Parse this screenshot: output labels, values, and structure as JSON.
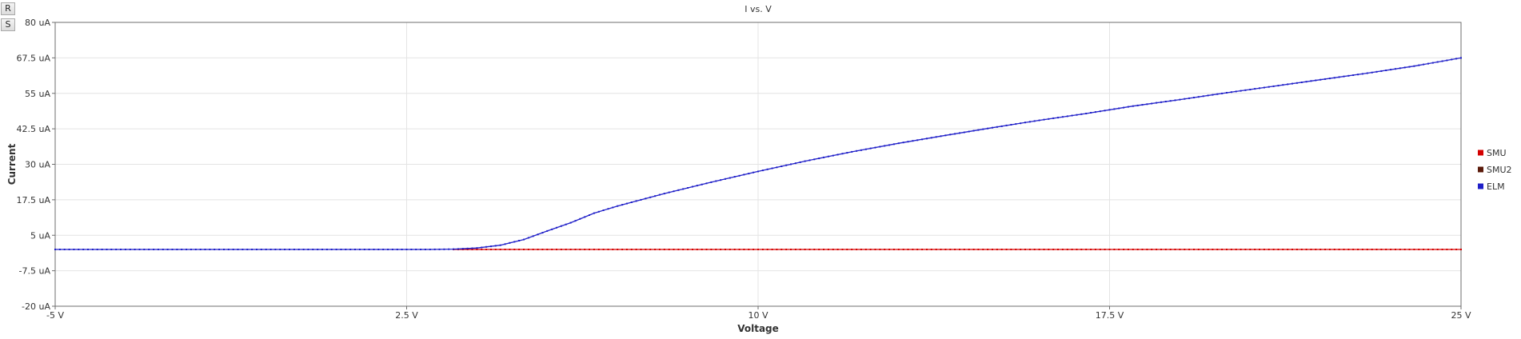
{
  "toolbar": {
    "reset_label": "R",
    "settings_label": "S"
  },
  "chart_data": {
    "type": "line",
    "title": "I vs. V",
    "xlabel": "Voltage",
    "ylabel": "Current",
    "xlim": [
      -5,
      25
    ],
    "ylim": [
      -20,
      80
    ],
    "x_ticks": [
      -5,
      2.5,
      10,
      17.5,
      25
    ],
    "x_tick_labels": [
      "-5 V",
      "2.5 V",
      "10 V",
      "17.5 V",
      "25 V"
    ],
    "y_ticks": [
      -20,
      -7.5,
      5,
      17.5,
      30,
      42.5,
      55,
      67.5,
      80
    ],
    "y_tick_labels": [
      "-20 uA",
      "-7.5 uA",
      "5 uA",
      "17.5 uA",
      "30 uA",
      "42.5 uA",
      "55 uA",
      "67.5 uA",
      "80 uA"
    ],
    "grid": true,
    "legend_position": "right",
    "series": [
      {
        "name": "SMU",
        "color": "#d40000",
        "x": [
          3.5,
          25
        ],
        "y": [
          0,
          0
        ]
      },
      {
        "name": "SMU2",
        "color": "#5a1a0a",
        "x": [],
        "y": []
      },
      {
        "name": "ELM",
        "color": "#1f1fc8",
        "x": [
          -5,
          0,
          3,
          3.5,
          4,
          4.5,
          5,
          5.5,
          6,
          6.5,
          7,
          8,
          9,
          10,
          11,
          12,
          13,
          14,
          15,
          16,
          17,
          18,
          19,
          20,
          21,
          22,
          23,
          24,
          25
        ],
        "y": [
          0,
          0,
          0,
          0.1,
          0.5,
          1.5,
          3.5,
          6.5,
          9.4,
          12.8,
          15.3,
          19.7,
          23.7,
          27.5,
          31.1,
          34.4,
          37.4,
          40.2,
          42.9,
          45.5,
          47.9,
          50.5,
          52.8,
          55.2,
          57.5,
          59.8,
          62.1,
          64.6,
          67.5
        ]
      }
    ]
  }
}
